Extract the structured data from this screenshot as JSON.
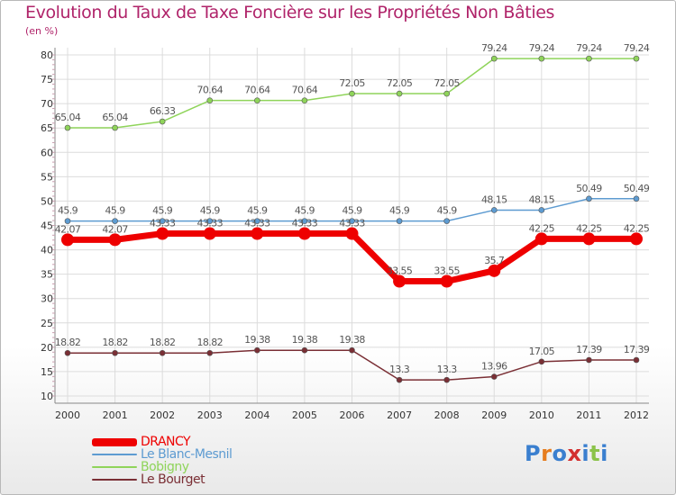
{
  "title": "Evolution du Taux de Taxe Foncière sur les Propriétés Non Bâties",
  "unit_label": "(en %)",
  "logo": {
    "text": "Proxiti",
    "colors": [
      "#3a7fcf",
      "#e67d1f",
      "#3a7fcf",
      "#d32f2f",
      "#3a7fcf",
      "#8bc34a",
      "#3a7fcf"
    ]
  },
  "chart_data": {
    "type": "line",
    "title": "Evolution du Taux de Taxe Foncière sur les Propriétés Non Bâties",
    "ylabel": "(en %)",
    "xlabel": "",
    "ylim": [
      10,
      80
    ],
    "yticks": [
      10,
      15,
      20,
      25,
      30,
      35,
      40,
      45,
      50,
      55,
      60,
      65,
      70,
      75,
      80
    ],
    "grid": true,
    "legend_position": "bottom-left",
    "x": [
      "2000",
      "2001",
      "2002",
      "2003",
      "2004",
      "2005",
      "2006",
      "2007",
      "2008",
      "2009",
      "2010",
      "2011",
      "2012"
    ],
    "series": [
      {
        "name": "DRANCY",
        "color": "#ee0000",
        "values": [
          42.07,
          42.07,
          43.33,
          43.33,
          43.33,
          43.33,
          43.33,
          33.55,
          33.55,
          35.7,
          42.25,
          42.25,
          42.25
        ],
        "labels": [
          "42.07",
          "42.07",
          "43.33",
          "43.33",
          "43.33",
          "43.33",
          "43.33",
          "33.55",
          "33.55",
          "35.7",
          "42.25",
          "42.25",
          "42.25"
        ]
      },
      {
        "name": "Le Blanc-Mesnil",
        "color": "#5d9bd1",
        "values": [
          45.9,
          45.9,
          45.9,
          45.9,
          45.9,
          45.9,
          45.9,
          45.9,
          45.9,
          48.15,
          48.15,
          50.49,
          50.49
        ],
        "labels": [
          "45.9",
          "45.9",
          "45.9",
          "45.9",
          "45.9",
          "45.9",
          "45.9",
          "45.9",
          "45.9",
          "48.15",
          "48.15",
          "50.49",
          "50.49"
        ]
      },
      {
        "name": "Bobigny",
        "color": "#8fd45a",
        "values": [
          65.04,
          65.04,
          66.33,
          70.64,
          70.64,
          70.64,
          72.05,
          72.05,
          72.05,
          79.24,
          79.24,
          79.24,
          79.24
        ],
        "labels": [
          "65.04",
          "65.04",
          "66.33",
          "70.64",
          "70.64",
          "70.64",
          "72.05",
          "72.05",
          "72.05",
          "79.24",
          "79.24",
          "79.24",
          "79.24"
        ]
      },
      {
        "name": "Le Bourget",
        "color": "#7a2f35",
        "values": [
          18.82,
          18.82,
          18.82,
          18.82,
          19.38,
          19.38,
          19.38,
          13.3,
          13.3,
          13.96,
          17.05,
          17.39,
          17.39
        ],
        "labels": [
          "18.82",
          "18.82",
          "18.82",
          "18.82",
          "19.38",
          "19.38",
          "19.38",
          "13.3",
          "13.3",
          "13.96",
          "17.05",
          "17.39",
          "17.39"
        ]
      }
    ]
  }
}
